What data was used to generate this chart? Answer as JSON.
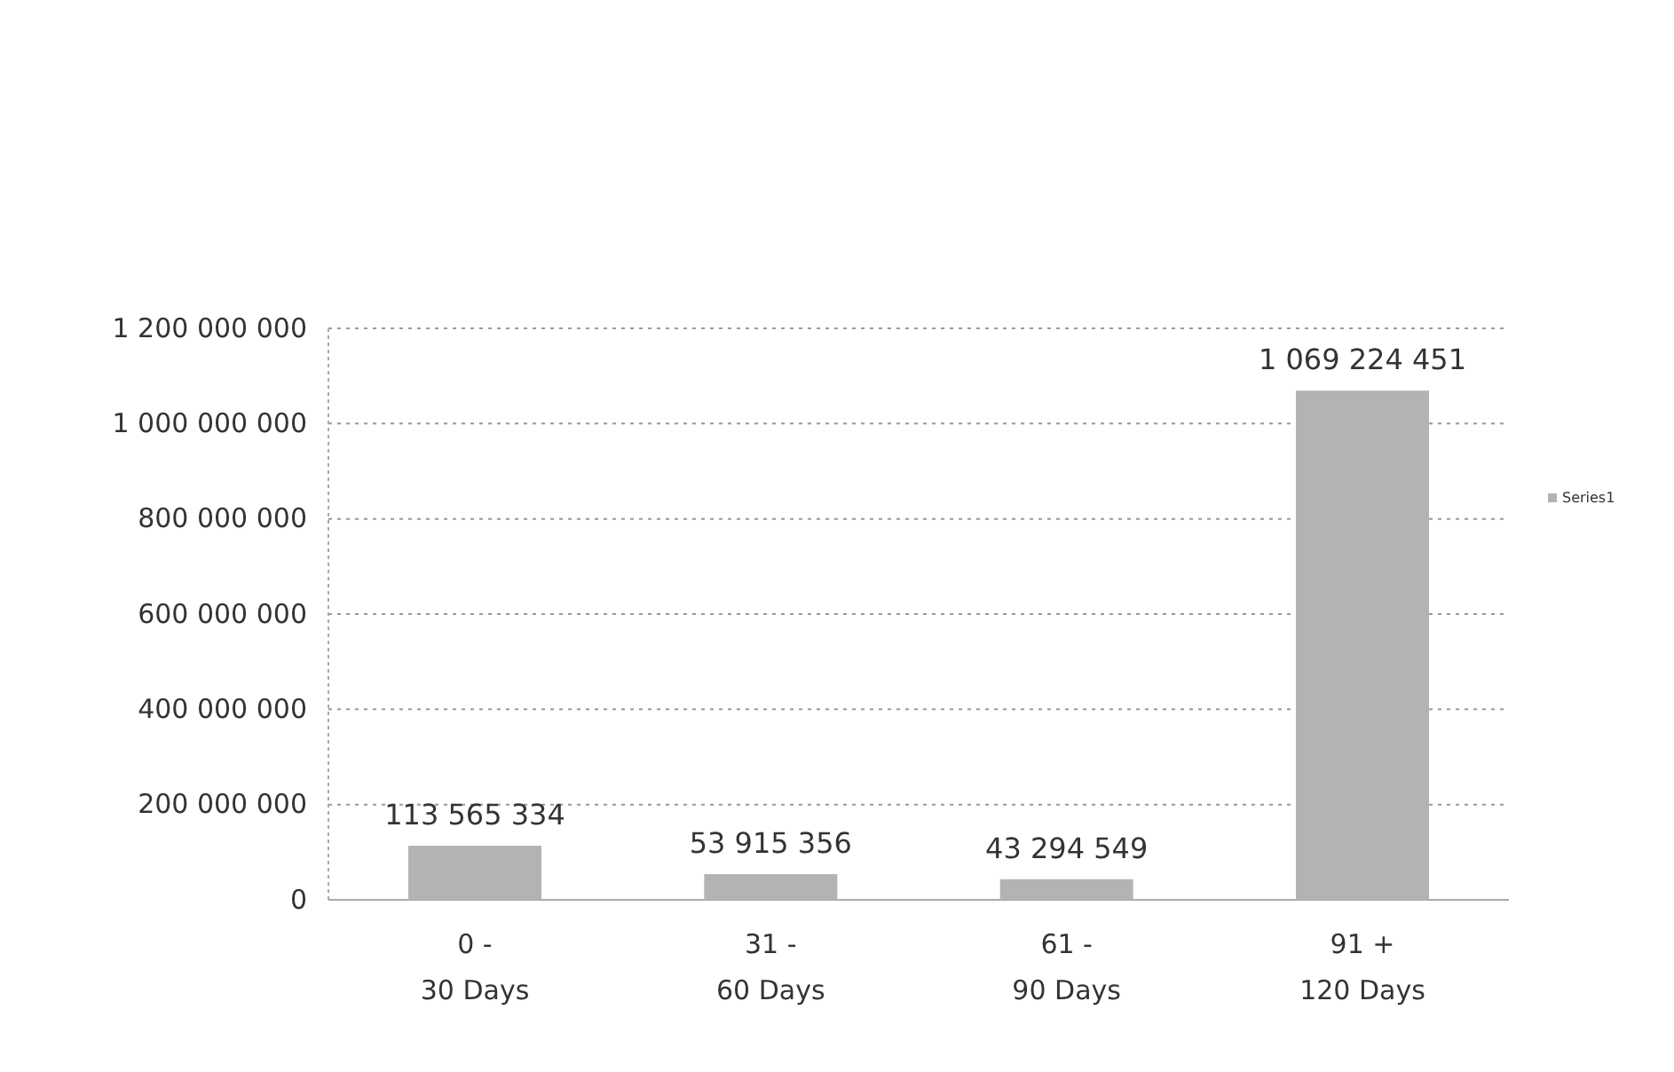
{
  "chart_data": {
    "type": "bar",
    "categories": [
      "0 -\n30 Days",
      "31 -\n60 Days",
      "61 -\n90 Days",
      "91 +\n120 Days"
    ],
    "series": [
      {
        "name": "Series1",
        "color": "#b3b3b3",
        "values": [
          113565334,
          53915356,
          43294549,
          1069224451
        ]
      }
    ],
    "ylim": [
      0,
      1200000000
    ],
    "yticks": [
      {
        "value": 0,
        "label": "0"
      },
      {
        "value": 200000000,
        "label": "200 000 000"
      },
      {
        "value": 400000000,
        "label": "400 000 000"
      },
      {
        "value": 600000000,
        "label": "600 000 000"
      },
      {
        "value": 800000000,
        "label": "800 000 000"
      },
      {
        "value": 1000000000,
        "label": "1 000 000 000"
      },
      {
        "value": 1200000000,
        "label": "1 200 000 000"
      }
    ],
    "value_labels": [
      "113 565 334",
      "53 915 356",
      "43 294 549",
      "1 069 224 451"
    ],
    "grid": "y",
    "legend": "right"
  }
}
